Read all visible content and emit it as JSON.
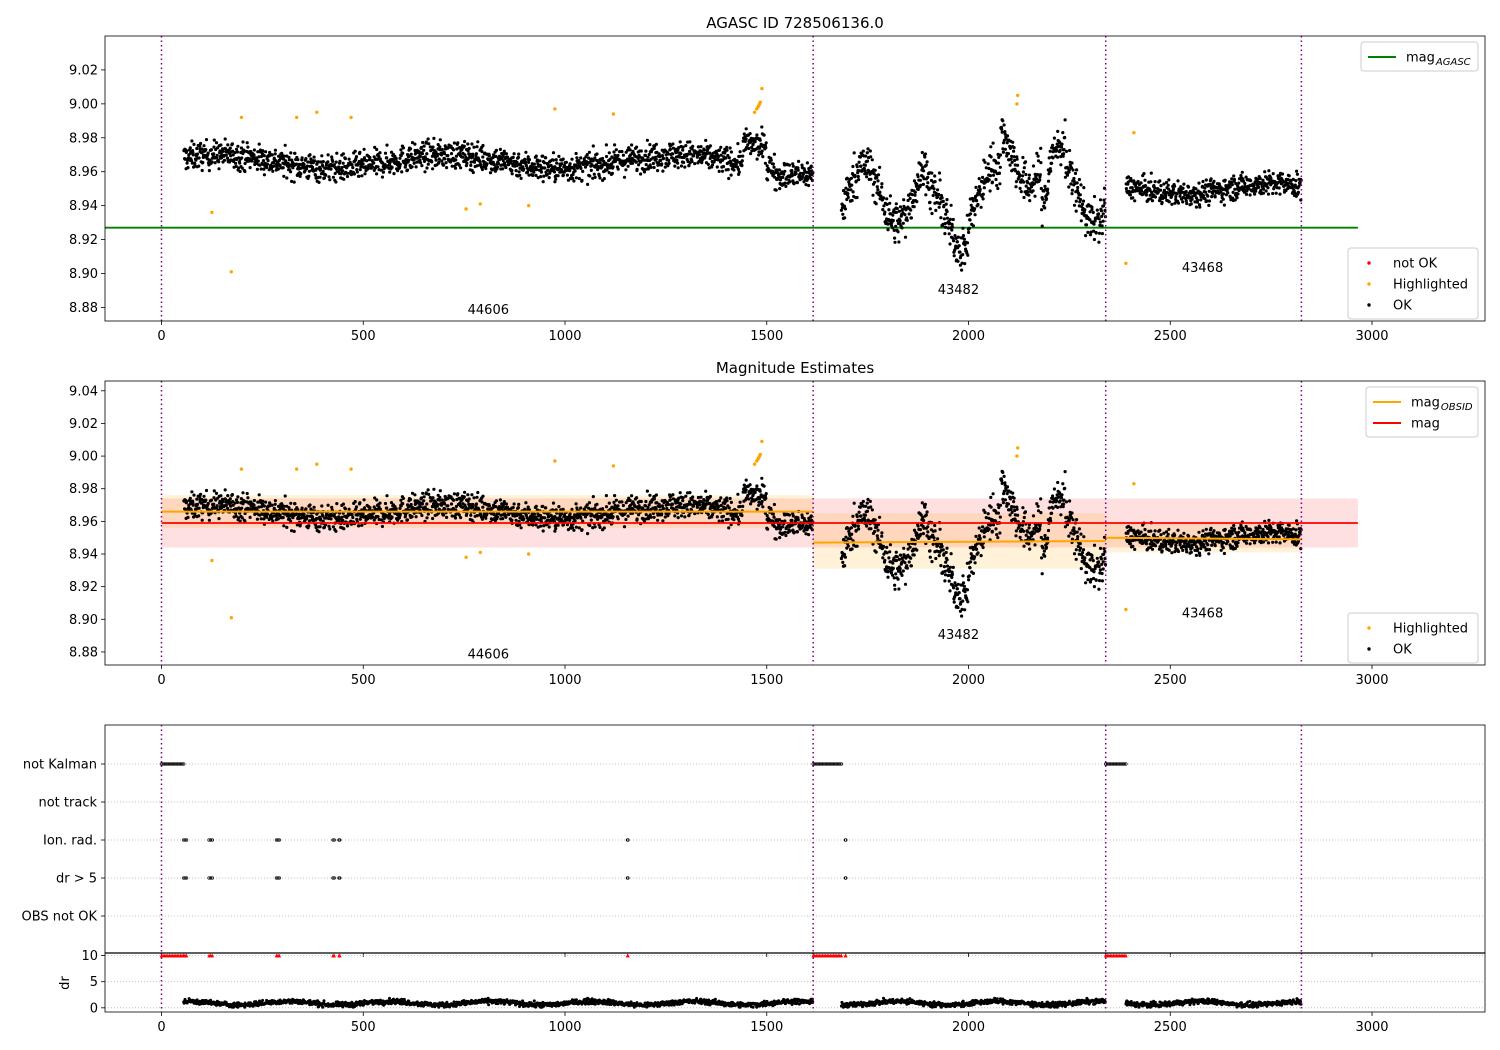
{
  "chart_data": [
    {
      "type": "scatter",
      "title": "AGASC ID 728506136.0",
      "xlim": [
        -140,
        3280
      ],
      "ylim": [
        8.872,
        9.04
      ],
      "xticks": [
        0,
        500,
        1000,
        1500,
        2000,
        2500,
        3000
      ],
      "yticks": [
        8.88,
        8.9,
        8.92,
        8.94,
        8.96,
        8.98,
        9.0,
        9.02
      ],
      "obsid_boundaries": [
        0,
        1615,
        2340,
        2825
      ],
      "reference_lines": [
        {
          "name": "mag_AGASC",
          "y": 8.927,
          "x": [
            -140,
            2965
          ],
          "color": "#008000"
        }
      ],
      "legends": [
        {
          "placement": "top-right",
          "entries": [
            {
              "label": "mag",
              "sub": "AGASC",
              "color": "#008000",
              "kind": "line"
            }
          ]
        },
        {
          "placement": "bottom-right",
          "entries": [
            {
              "label": "not OK",
              "color": "#ff0000",
              "kind": "dot"
            },
            {
              "label": "Highlighted",
              "color": "#ffa500",
              "kind": "dot"
            },
            {
              "label": "OK",
              "color": "#000000",
              "kind": "dot"
            }
          ]
        }
      ],
      "annotations": [
        {
          "text": "44606",
          "x": 810,
          "y": 8.876
        },
        {
          "text": "43482",
          "x": 1975,
          "y": 8.888
        },
        {
          "text": "43468",
          "x": 2580,
          "y": 8.901
        }
      ],
      "series": [
        {
          "name": "OK",
          "color": "#000000",
          "segments": [
            {
              "x": [
                55,
                1615
              ],
              "mean": 8.966,
              "spread": 0.009
            },
            {
              "x": [
                1685,
                2340
              ],
              "mean": 8.947,
              "spread": 0.014
            },
            {
              "x": [
                2390,
                2825
              ],
              "mean": 8.95,
              "spread": 0.008
            }
          ]
        },
        {
          "name": "Highlighted",
          "color": "#ffa500",
          "points": [
            [
              125,
              8.936
            ],
            [
              173,
              8.901
            ],
            [
              198,
              8.992
            ],
            [
              335,
              8.992
            ],
            [
              385,
              8.995
            ],
            [
              470,
              8.992
            ],
            [
              755,
              8.938
            ],
            [
              790,
              8.941
            ],
            [
              910,
              8.94
            ],
            [
              975,
              8.997
            ],
            [
              1120,
              8.994
            ],
            [
              1470,
              8.995
            ],
            [
              1475,
              8.997
            ],
            [
              1478,
              8.998
            ],
            [
              1480,
              8.999
            ],
            [
              1482,
              9.0
            ],
            [
              1484,
              9.001
            ],
            [
              1488,
              9.009
            ],
            [
              2120,
              9.0
            ],
            [
              2122,
              9.005
            ],
            [
              2390,
              8.906
            ],
            [
              2410,
              8.983
            ]
          ]
        }
      ]
    },
    {
      "type": "scatter",
      "title": "Magnitude Estimates",
      "xlim": [
        -140,
        3280
      ],
      "ylim": [
        8.872,
        9.046
      ],
      "xticks": [
        0,
        500,
        1000,
        1500,
        2000,
        2500,
        3000
      ],
      "yticks": [
        8.88,
        8.9,
        8.92,
        8.94,
        8.96,
        8.98,
        9.0,
        9.02,
        9.04
      ],
      "obsid_boundaries": [
        0,
        1615,
        2340,
        2825
      ],
      "reference_lines": [
        {
          "name": "mag",
          "y": 8.959,
          "band": [
            8.944,
            8.974
          ],
          "x": [
            0,
            2965
          ],
          "color": "#ff0000"
        }
      ],
      "obsid_mags": [
        {
          "x": [
            0,
            1615
          ],
          "y_start": 8.966,
          "y_end": 8.966,
          "band": [
            8.956,
            8.976
          ]
        },
        {
          "x": [
            1615,
            2340
          ],
          "y_start": 8.947,
          "y_end": 8.948,
          "band": [
            8.931,
            8.965
          ]
        },
        {
          "x": [
            2340,
            2825
          ],
          "y_start": 8.95,
          "y_end": 8.949,
          "band": [
            8.941,
            8.959
          ]
        }
      ],
      "legends": [
        {
          "placement": "top-right",
          "entries": [
            {
              "label": "mag",
              "sub": "OBSID",
              "color": "#ffa500",
              "kind": "line"
            },
            {
              "label": "mag",
              "sub": "",
              "color": "#ff0000",
              "kind": "line"
            }
          ]
        },
        {
          "placement": "bottom-right",
          "entries": [
            {
              "label": "Highlighted",
              "color": "#ffa500",
              "kind": "dot"
            },
            {
              "label": "OK",
              "color": "#000000",
              "kind": "dot"
            }
          ]
        }
      ],
      "annotations": [
        {
          "text": "44606",
          "x": 810,
          "y": 8.876
        },
        {
          "text": "43482",
          "x": 1975,
          "y": 8.888
        },
        {
          "text": "43468",
          "x": 2580,
          "y": 8.901
        }
      ]
    },
    {
      "type": "scatter",
      "title": "",
      "xlim": [
        -140,
        3280
      ],
      "xticks": [
        0,
        500,
        1000,
        1500,
        2000,
        2500,
        3000
      ],
      "flag_rows": [
        "not Kalman",
        "not track",
        "Ion. rad.",
        "dr > 5",
        "OBS not OK"
      ],
      "flag_spans": {
        "not Kalman": [
          [
            0,
            55
          ],
          [
            1615,
            1685
          ],
          [
            2340,
            2390
          ]
        ],
        "Ion. rad.": [
          [
            55,
            62
          ],
          [
            118,
            126
          ],
          [
            285,
            292
          ],
          [
            425,
            428
          ],
          [
            440,
            442
          ],
          [
            1155,
            1156
          ],
          [
            1695,
            1696
          ]
        ],
        "dr > 5": [
          [
            55,
            62
          ],
          [
            118,
            126
          ],
          [
            285,
            292
          ],
          [
            425,
            428
          ],
          [
            440,
            442
          ],
          [
            1155,
            1156
          ],
          [
            1695,
            1696
          ]
        ]
      },
      "obsid_boundaries": [
        0,
        1615,
        2340,
        2825
      ]
    },
    {
      "type": "scatter",
      "title": "",
      "ylabel": "dr",
      "xlim": [
        -140,
        3280
      ],
      "ylim": [
        -0.8,
        10.5
      ],
      "xticks": [
        0,
        500,
        1000,
        1500,
        2000,
        2500,
        3000
      ],
      "yticks": [
        0,
        5,
        10
      ],
      "obsid_boundaries": [
        0,
        1615,
        2340,
        2825
      ],
      "clipped_marker_y": 10,
      "series": [
        {
          "name": "OK",
          "color": "#000000",
          "mean": 0.9
        },
        {
          "name": "not OK",
          "color": "#ff0000"
        }
      ]
    }
  ]
}
